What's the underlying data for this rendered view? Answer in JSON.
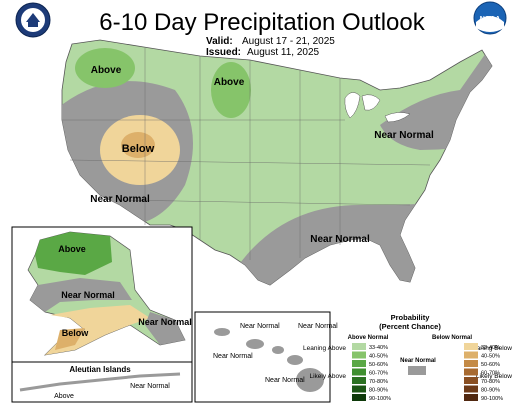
{
  "header": {
    "title": "6-10 Day Precipitation Outlook",
    "valid_label": "Valid:",
    "valid_value": "August 17 - 21, 2025",
    "issued_label": "Issued:",
    "issued_value": "August 11, 2025"
  },
  "logos": {
    "left": "seal-icon",
    "right_text": "NOAA"
  },
  "map_labels": {
    "conus": [
      "Above",
      "Above",
      "Below",
      "Near Normal",
      "Near Normal",
      "Near Normal"
    ],
    "alaska": [
      "Above",
      "Near Normal",
      "Below",
      "Near Normal"
    ],
    "aleutian_title": "Aleutian Islands",
    "aleutian": [
      "Near Normal",
      "Above"
    ],
    "hawaii": [
      "Near Normal",
      "Near Normal",
      "Near Normal",
      "Near Normal"
    ]
  },
  "legend": {
    "title_line1": "Probability",
    "title_line2": "(Percent Chance)",
    "above_header": "Above Normal",
    "below_header": "Below Normal",
    "near_header": "Near Normal",
    "leaning_above": "Leaning Above",
    "likely_above": "Likely Above",
    "leaning_below": "Leaning Below",
    "likely_below": "Likely Below",
    "above_bins": [
      "33-40%",
      "40-50%",
      "50-60%",
      "60-70%",
      "70-80%",
      "80-90%",
      "90-100%"
    ],
    "below_bins": [
      "33-40%",
      "40-50%",
      "50-60%",
      "60-70%",
      "70-80%",
      "80-90%",
      "90-100%"
    ],
    "above_colors": [
      "#b3d9a3",
      "#86c46a",
      "#5aa845",
      "#3f8f2f",
      "#2b7121",
      "#1b5514",
      "#0e3a0a"
    ],
    "below_colors": [
      "#f0d59a",
      "#ddb06a",
      "#c48a46",
      "#a86a30",
      "#8a4f22",
      "#6d3a18",
      "#512810"
    ],
    "near_color": "#9a9a9a"
  }
}
